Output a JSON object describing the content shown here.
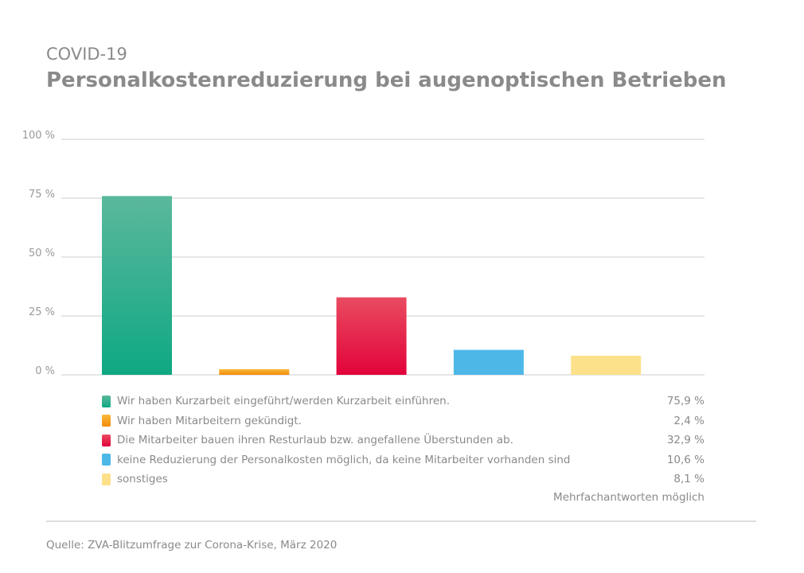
{
  "subtitle": "COVID-19",
  "title": "Personalkostenreduzierung bei augenoptischen Betrieben",
  "chart_data": {
    "type": "bar",
    "ylim": [
      0,
      100
    ],
    "yticks": [
      0,
      25,
      50,
      75,
      100
    ],
    "ytick_labels": [
      "0 %",
      "25 %",
      "50 %",
      "75 %",
      "100 %"
    ],
    "grid": true,
    "legend_placement": "bottom",
    "categories": [
      "Wir haben Kurzarbeit eingeführt/werden Kurzarbeit einführen.",
      "Wir haben Mitarbeitern gekündigt.",
      "Die Mitarbeiter bauen ihren Resturlaub bzw. angefallene Überstunden ab.",
      "keine Reduzierung der Personalkosten möglich, da keine Mitarbeiter vorhanden sind",
      "sonstiges"
    ],
    "values": [
      75.9,
      2.4,
      32.9,
      10.6,
      8.1
    ],
    "value_labels": [
      "75,9 %",
      "2,4 %",
      "32,9 %",
      "10,6 %",
      "8,1 %"
    ],
    "colors": [
      [
        "#5bb89c",
        "#0fa883"
      ],
      [
        "#fbb83a",
        "#f28c0a"
      ],
      [
        "#e94b61",
        "#e2033a"
      ],
      [
        "#4db8e8",
        "#4db8e8"
      ],
      [
        "#fde08a",
        "#fde08a"
      ]
    ],
    "note": "Mehrfachantworten möglich"
  },
  "source": "Quelle: ZVA-Blitzumfrage zur Corona-Krise, März 2020"
}
